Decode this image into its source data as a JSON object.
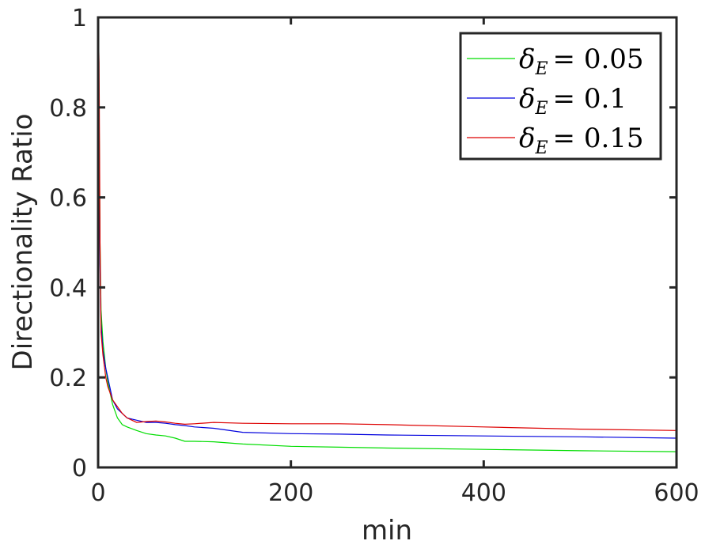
{
  "chart_data": {
    "type": "line",
    "title": "",
    "xlabel": "min",
    "ylabel": "Directionality Ratio",
    "xlim": [
      0,
      600
    ],
    "ylim": [
      0,
      1
    ],
    "xticks": [
      "0",
      "200",
      "400",
      "600"
    ],
    "yticks": [
      "0",
      "0.2",
      "0.4",
      "0.6",
      "0.8",
      "1"
    ],
    "grid": false,
    "legend_position": "top-right",
    "series": [
      {
        "name": "δE = 0.05",
        "name_symbol": "δ",
        "name_subscript": "E",
        "name_value": "= 0.05",
        "color": "#00dd00",
        "x": [
          0,
          1,
          2,
          3,
          5,
          8,
          10,
          15,
          20,
          25,
          30,
          40,
          50,
          60,
          70,
          80,
          90,
          100,
          120,
          150,
          200,
          250,
          300,
          400,
          500,
          600
        ],
        "y": [
          1.0,
          0.8,
          0.5,
          0.35,
          0.28,
          0.22,
          0.19,
          0.14,
          0.11,
          0.095,
          0.09,
          0.082,
          0.075,
          0.072,
          0.07,
          0.065,
          0.058,
          0.058,
          0.057,
          0.052,
          0.047,
          0.045,
          0.043,
          0.04,
          0.037,
          0.035
        ]
      },
      {
        "name": "δE = 0.1",
        "name_symbol": "δ",
        "name_subscript": "E",
        "name_value": "= 0.1",
        "color": "#0000dd",
        "x": [
          0,
          1,
          2,
          3,
          5,
          8,
          10,
          15,
          20,
          25,
          30,
          40,
          50,
          60,
          70,
          80,
          90,
          100,
          120,
          150,
          200,
          250,
          300,
          400,
          500,
          600
        ],
        "y": [
          1.0,
          0.75,
          0.45,
          0.32,
          0.26,
          0.22,
          0.2,
          0.15,
          0.13,
          0.12,
          0.11,
          0.105,
          0.1,
          0.1,
          0.098,
          0.095,
          0.093,
          0.09,
          0.087,
          0.078,
          0.075,
          0.074,
          0.072,
          0.07,
          0.068,
          0.065
        ]
      },
      {
        "name": "δE = 0.15",
        "name_symbol": "δ",
        "name_subscript": "E",
        "name_value": "= 0.15",
        "color": "#dd0000",
        "x": [
          0,
          1,
          2,
          3,
          5,
          8,
          10,
          15,
          20,
          25,
          30,
          40,
          50,
          60,
          70,
          80,
          90,
          100,
          120,
          150,
          200,
          250,
          300,
          400,
          500,
          600
        ],
        "y": [
          1.0,
          0.9,
          0.5,
          0.3,
          0.25,
          0.2,
          0.18,
          0.15,
          0.135,
          0.12,
          0.11,
          0.1,
          0.102,
          0.103,
          0.101,
          0.098,
          0.096,
          0.097,
          0.1,
          0.098,
          0.097,
          0.097,
          0.095,
          0.09,
          0.085,
          0.082
        ]
      }
    ]
  }
}
